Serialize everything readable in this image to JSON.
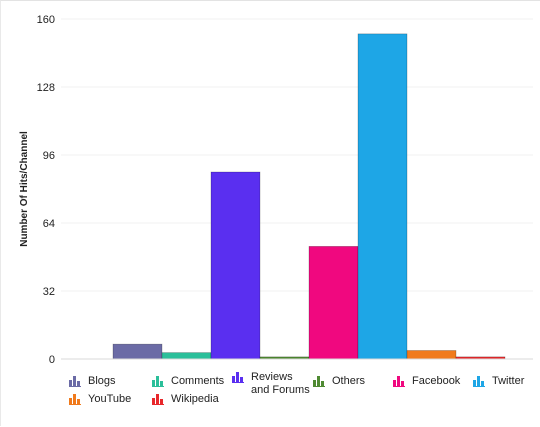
{
  "chart_data": {
    "type": "bar",
    "ylabel": "Number Of Hits/Channel",
    "ylim": [
      0,
      160
    ],
    "yticks": [
      0,
      32,
      64,
      96,
      128,
      160
    ],
    "grid": true,
    "legend_position": "bottom",
    "series": [
      {
        "name": "Blogs",
        "value": 7,
        "color": "#6b6ba6"
      },
      {
        "name": "Comments",
        "value": 3,
        "color": "#2bbf9a"
      },
      {
        "name": "Reviews and Forums",
        "value": 88,
        "color": "#5a2ff0"
      },
      {
        "name": "Others",
        "value": 1,
        "color": "#4f8a32"
      },
      {
        "name": "Facebook",
        "value": 53,
        "color": "#f0087f"
      },
      {
        "name": "Twitter",
        "value": 153,
        "color": "#1ea6e6"
      },
      {
        "name": "YouTube",
        "value": 4,
        "color": "#f07a1c"
      },
      {
        "name": "Wikipedia",
        "value": 1,
        "color": "#e8282b"
      }
    ]
  }
}
